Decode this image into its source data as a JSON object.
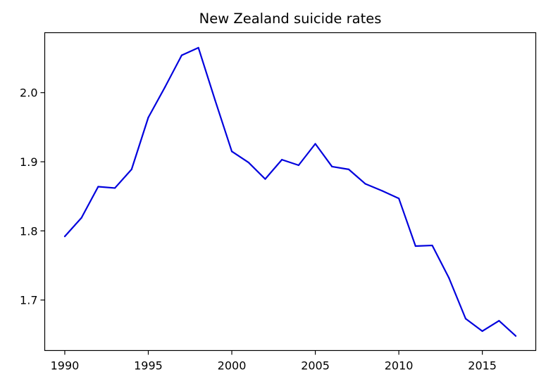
{
  "chart_data": {
    "type": "line",
    "title": "New Zealand suicide rates",
    "xlabel": "",
    "ylabel": "",
    "xlim": [
      1988.8,
      2018.2
    ],
    "ylim": [
      1.627,
      2.0867
    ],
    "x_ticks": [
      1990,
      1995,
      2000,
      2005,
      2010,
      2015
    ],
    "y_ticks": [
      1.7,
      1.8,
      1.9,
      2.0
    ],
    "x_tick_labels": [
      "1990",
      "1995",
      "2000",
      "2005",
      "2010",
      "2015"
    ],
    "y_tick_labels": [
      "1.7",
      "1.8",
      "1.9",
      "2.0"
    ],
    "grid": false,
    "legend": "none",
    "series": [
      {
        "color": "#0000dd",
        "x": [
          1990,
          1991,
          1992,
          1993,
          1994,
          1995,
          1996,
          1997,
          1998,
          1999,
          2000,
          2001,
          2002,
          2003,
          2004,
          2005,
          2006,
          2007,
          2008,
          2009,
          2010,
          2011,
          2012,
          2013,
          2014,
          2015,
          2016,
          2017
        ],
        "values": [
          1.792,
          1.819,
          1.864,
          1.862,
          1.889,
          1.964,
          2.008,
          2.054,
          2.065,
          1.989,
          1.915,
          1.899,
          1.875,
          1.903,
          1.895,
          1.926,
          1.893,
          1.889,
          1.868,
          1.858,
          1.847,
          1.778,
          1.779,
          1.732,
          1.673,
          1.655,
          1.67,
          1.648
        ]
      }
    ]
  }
}
